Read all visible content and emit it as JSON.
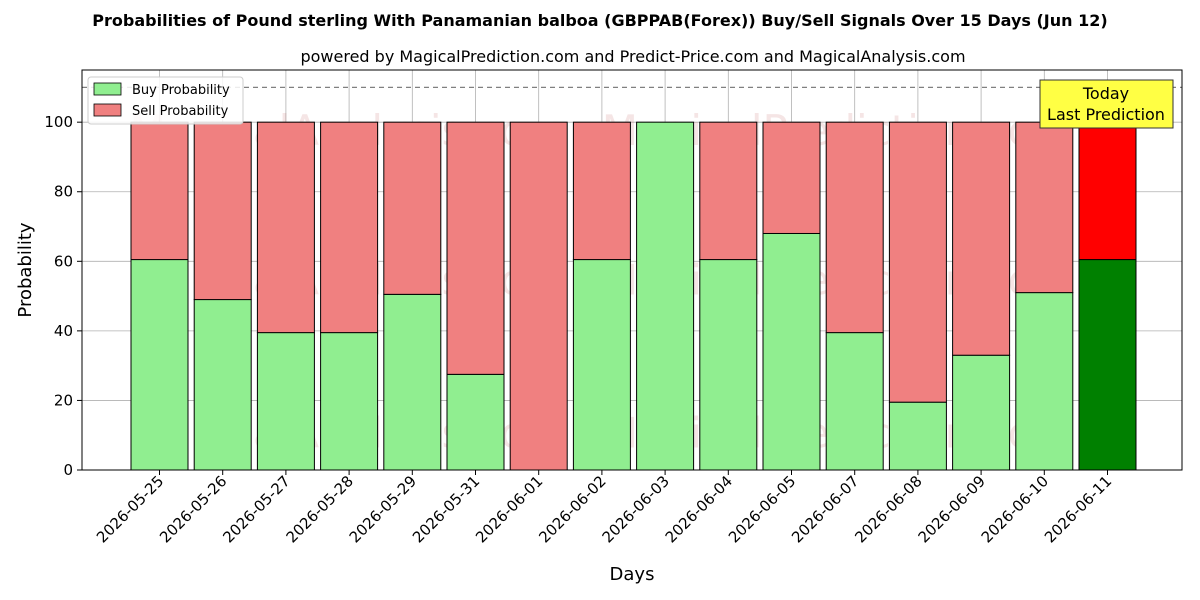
{
  "chart_data": {
    "type": "bar",
    "stacked": true,
    "title": "Probabilities of Pound sterling With Panamanian balboa (GBPPAB(Forex)) Buy/Sell Signals Over 15 Days (Jun 12)",
    "subtitle": "powered by MagicalPrediction.com and Predict-Price.com and MagicalAnalysis.com",
    "xlabel": "Days",
    "ylabel": "Probability",
    "ylim": [
      0,
      115
    ],
    "yticks": [
      0,
      20,
      40,
      60,
      80,
      100
    ],
    "grid": true,
    "reference_line": 110,
    "legend_placement": "top-left",
    "categories": [
      "2026-05-25",
      "2026-05-26",
      "2026-05-27",
      "2026-05-28",
      "2026-05-29",
      "2026-05-31",
      "2026-06-01",
      "2026-06-02",
      "2026-06-03",
      "2026-06-04",
      "2026-06-05",
      "2026-06-07",
      "2026-06-08",
      "2026-06-09",
      "2026-06-10",
      "2026-06-11"
    ],
    "series": [
      {
        "name": "Buy Probability",
        "color": "#90ee90",
        "highlight_color": "#008000",
        "values": [
          60.5,
          49,
          39.5,
          39.5,
          50.5,
          27.5,
          0,
          60.5,
          100,
          60.5,
          68,
          39.5,
          19.5,
          33,
          51,
          60.5
        ]
      },
      {
        "name": "Sell Probability",
        "color": "#f08080",
        "highlight_color": "#ff0000",
        "values": [
          39.5,
          51,
          60.5,
          60.5,
          49.5,
          72.5,
          100,
          39.5,
          0,
          39.5,
          32,
          60.5,
          80.5,
          67,
          49,
          39.5
        ]
      }
    ],
    "highlight_index": 15,
    "annotation": {
      "lines": [
        "Today",
        "Last Prediction"
      ],
      "color": "#ffff44"
    },
    "watermarks": [
      "MagicalAnalysis.com",
      "MagicalPrediction.com"
    ]
  }
}
